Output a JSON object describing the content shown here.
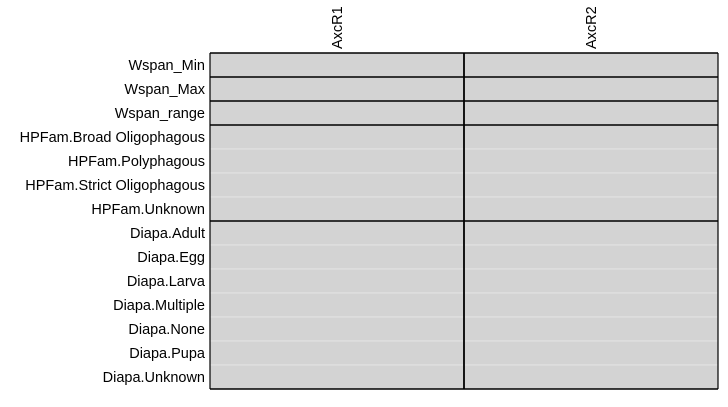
{
  "chart_data": {
    "type": "heatmap",
    "title": "",
    "columns": [
      "AxcR1",
      "AxcR2"
    ],
    "rows": [
      "Wspan_Min",
      "Wspan_Max",
      "Wspan_range",
      "HPFam.Broad Oligophagous",
      "HPFam.Polyphagous",
      "HPFam.Strict Oligophagous",
      "HPFam.Unknown",
      "Diapa.Adult",
      "Diapa.Egg",
      "Diapa.Larva",
      "Diapa.Multiple",
      "Diapa.None",
      "Diapa.Pupa",
      "Diapa.Unknown"
    ],
    "values": [
      [
        0,
        0
      ],
      [
        0,
        0
      ],
      [
        0,
        0
      ],
      [
        0,
        0
      ],
      [
        0,
        0
      ],
      [
        0,
        0
      ],
      [
        0,
        0
      ],
      [
        0,
        0
      ],
      [
        0,
        0
      ],
      [
        0,
        0
      ],
      [
        0,
        0
      ],
      [
        0,
        0
      ],
      [
        0,
        0
      ],
      [
        0,
        0
      ]
    ],
    "row_groups": [
      {
        "name": "Wspan_Min",
        "rows": 1
      },
      {
        "name": "Wspan_Max",
        "rows": 1
      },
      {
        "name": "Wspan_range",
        "rows": 1
      },
      {
        "name": "HPFam",
        "rows": 4
      },
      {
        "name": "Diapa",
        "rows": 7
      }
    ],
    "cell_color": "#d3d3d3",
    "cell_border_color": "#e8e8e8",
    "group_line_color": "#000000",
    "grid": true,
    "legend": "none"
  }
}
